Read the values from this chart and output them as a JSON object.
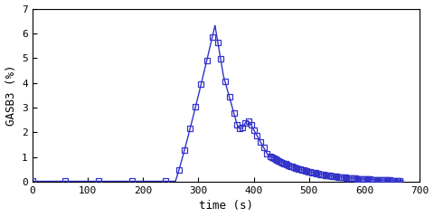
{
  "xlabel": "time (s)",
  "ylabel": "GASB3 (%)",
  "xlim": [
    0,
    700
  ],
  "ylim": [
    0,
    7
  ],
  "xticks": [
    0,
    100,
    200,
    300,
    400,
    500,
    600,
    700
  ],
  "yticks": [
    0,
    1,
    2,
    3,
    4,
    5,
    6,
    7
  ],
  "line_color": "#3333cc",
  "marker_color": "#3333cc",
  "marker": "s",
  "markersize": 4,
  "linewidth": 1.0,
  "background_color": "#ffffff",
  "font_family": "monospace"
}
